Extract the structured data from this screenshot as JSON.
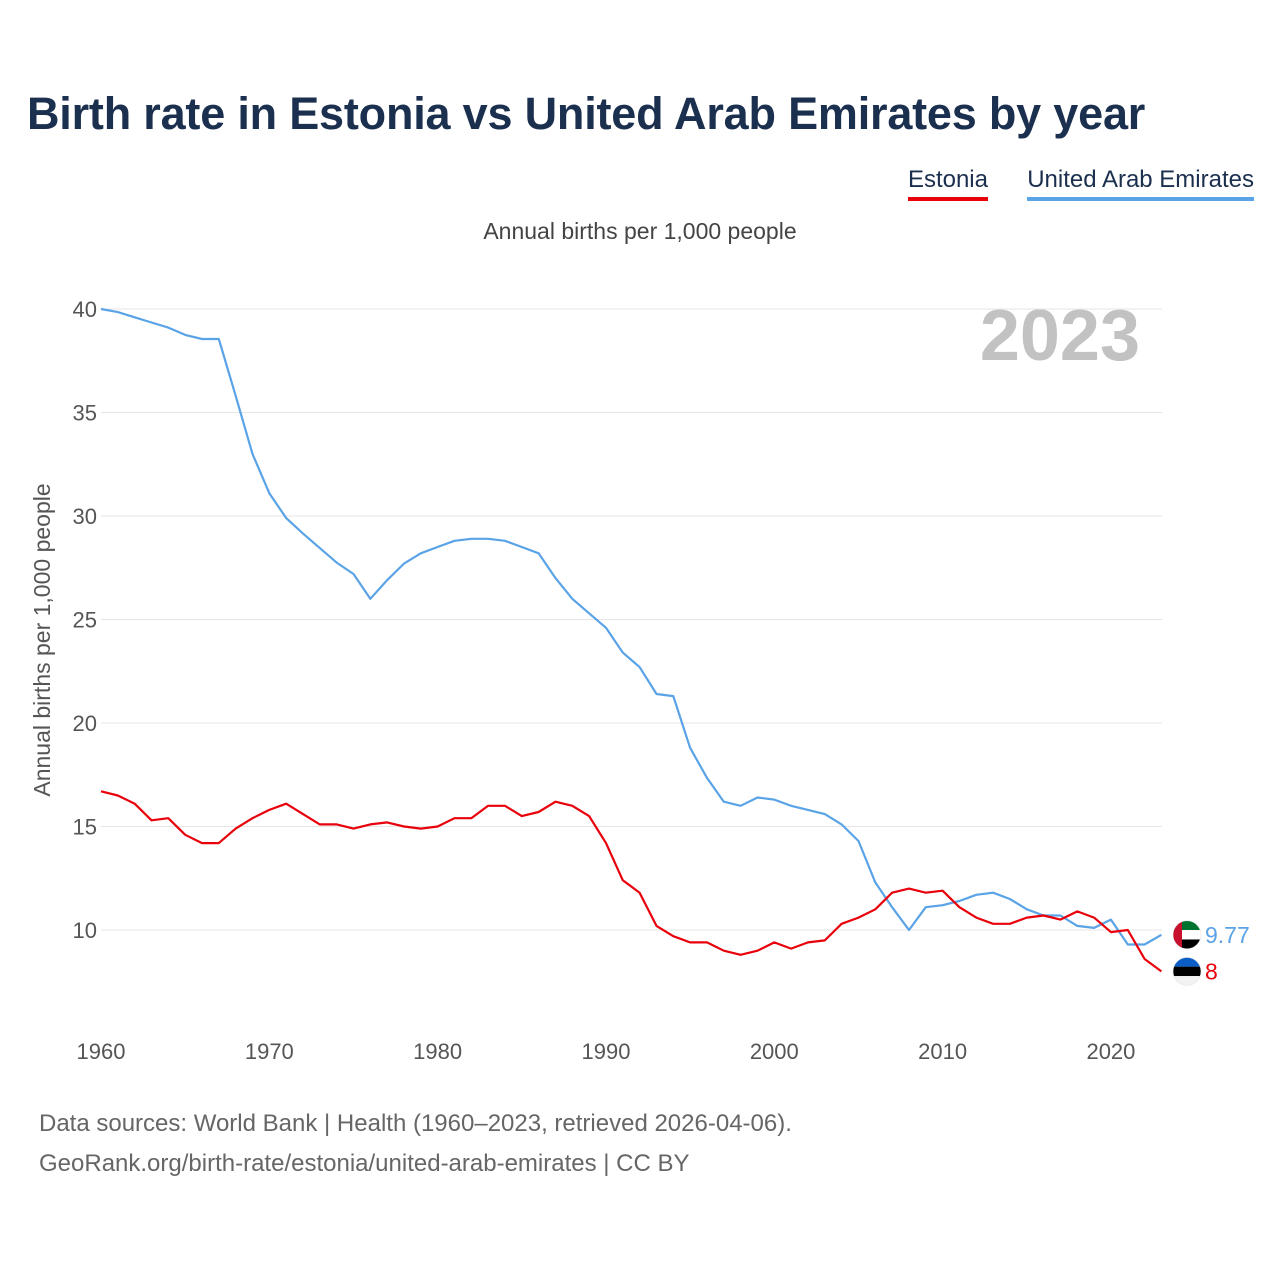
{
  "title": "Birth rate in Estonia vs United Arab Emirates by year",
  "legend": {
    "estonia": "Estonia",
    "uae": "United Arab Emirates"
  },
  "subtitle": "Annual births per 1,000 people",
  "year_watermark": "2023",
  "footer": {
    "line1": "Data sources: World Bank | Health (1960–2023, retrieved 2026-04-06).",
    "line2": "GeoRank.org/birth-rate/estonia/united-arab-emirates | CC BY"
  },
  "chart_data": {
    "type": "line",
    "title": "Birth rate in Estonia vs United Arab Emirates by year",
    "ylabel": "Annual births per 1,000 people",
    "xlabel": "",
    "xlim": [
      1960,
      2023
    ],
    "ylim": [
      7,
      40
    ],
    "x_ticks": [
      1960,
      1970,
      1980,
      1990,
      2000,
      2010,
      2020
    ],
    "y_ticks": [
      10,
      15,
      20,
      25,
      30,
      35,
      40
    ],
    "grid": true,
    "series": [
      {
        "name": "United Arab Emirates",
        "color": "#5aa3e6",
        "end_label": "9.77",
        "flag": "uae",
        "x": [
          1960,
          1961,
          1962,
          1963,
          1964,
          1965,
          1966,
          1967,
          1968,
          1969,
          1970,
          1971,
          1972,
          1973,
          1974,
          1975,
          1976,
          1977,
          1978,
          1979,
          1980,
          1981,
          1982,
          1983,
          1984,
          1985,
          1986,
          1987,
          1988,
          1989,
          1990,
          1991,
          1992,
          1993,
          1994,
          1995,
          1996,
          1997,
          1998,
          1999,
          2000,
          2001,
          2002,
          2003,
          2004,
          2005,
          2006,
          2007,
          2008,
          2009,
          2010,
          2011,
          2012,
          2013,
          2014,
          2015,
          2016,
          2017,
          2018,
          2019,
          2020,
          2021,
          2022,
          2023
        ],
        "values": [
          40,
          39.85,
          39.6,
          39.35,
          39.1,
          38.75,
          38.55,
          38.55,
          35.8,
          33,
          31.1,
          29.9,
          29.15,
          28.45,
          27.75,
          27.2,
          26,
          26.9,
          27.7,
          28.2,
          28.5,
          28.8,
          28.9,
          28.9,
          28.8,
          28.5,
          28.2,
          27,
          26,
          25.3,
          24.6,
          23.4,
          22.7,
          21.4,
          21.3,
          18.8,
          17.35,
          16.2,
          16,
          16.4,
          16.3,
          16,
          15.8,
          15.6,
          15.1,
          14.3,
          12.3,
          11.1,
          10,
          11.1,
          11.2,
          11.4,
          11.7,
          11.8,
          11.5,
          11,
          10.7,
          10.7,
          10.2,
          10.1,
          10.5,
          9.3,
          9.3,
          9.77
        ]
      },
      {
        "name": "Estonia",
        "color": "#e8000b",
        "end_label": "8",
        "flag": "estonia",
        "x": [
          1960,
          1961,
          1962,
          1963,
          1964,
          1965,
          1966,
          1967,
          1968,
          1969,
          1970,
          1971,
          1972,
          1973,
          1974,
          1975,
          1976,
          1977,
          1978,
          1979,
          1980,
          1981,
          1982,
          1983,
          1984,
          1985,
          1986,
          1987,
          1988,
          1989,
          1990,
          1991,
          1992,
          1993,
          1994,
          1995,
          1996,
          1997,
          1998,
          1999,
          2000,
          2001,
          2002,
          2003,
          2004,
          2005,
          2006,
          2007,
          2008,
          2009,
          2010,
          2011,
          2012,
          2013,
          2014,
          2015,
          2016,
          2017,
          2018,
          2019,
          2020,
          2021,
          2022,
          2023
        ],
        "values": [
          16.7,
          16.5,
          16.1,
          15.3,
          15.4,
          14.6,
          14.2,
          14.2,
          14.9,
          15.4,
          15.8,
          16.1,
          15.6,
          15.1,
          15.1,
          14.9,
          15.1,
          15.2,
          15,
          14.9,
          15,
          15.4,
          15.4,
          16,
          16,
          15.5,
          15.7,
          16.2,
          16,
          15.5,
          14.2,
          12.4,
          11.8,
          10.2,
          9.7,
          9.4,
          9.4,
          9,
          8.8,
          9,
          9.4,
          9.1,
          9.4,
          9.5,
          10.3,
          10.6,
          11,
          11.8,
          12,
          11.8,
          11.9,
          11.1,
          10.6,
          10.3,
          10.3,
          10.6,
          10.7,
          10.5,
          10.9,
          10.6,
          9.9,
          10,
          8.6,
          8
        ]
      }
    ]
  }
}
